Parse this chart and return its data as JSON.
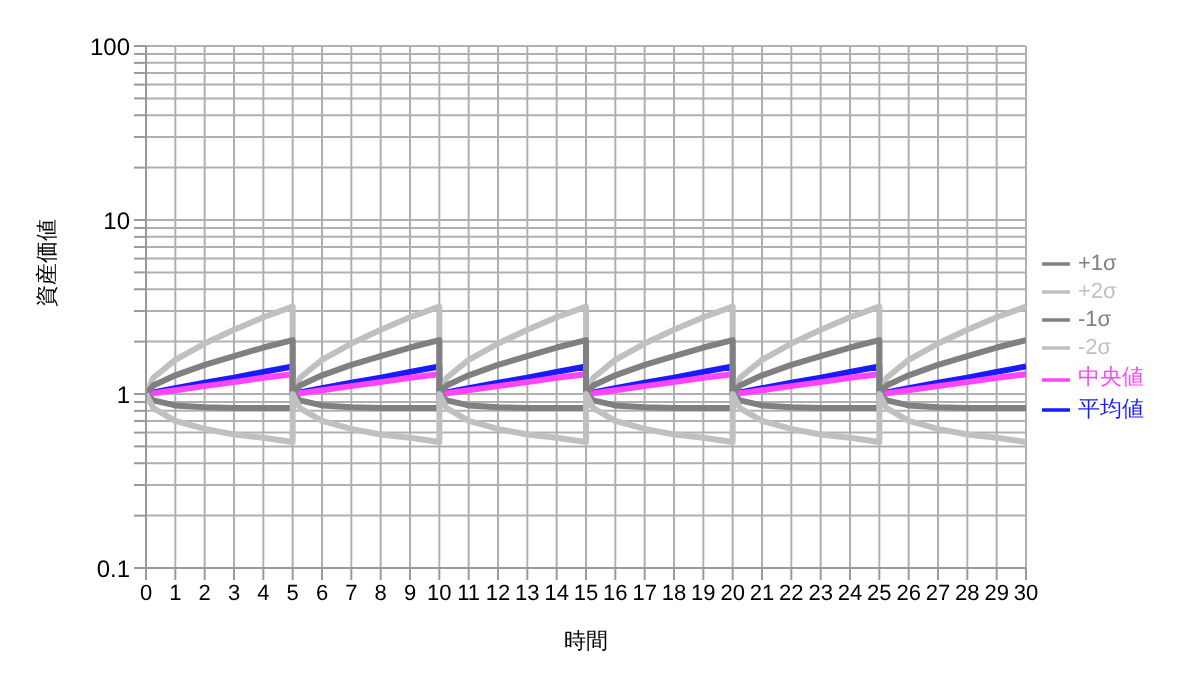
{
  "chart_data": {
    "type": "line",
    "xlabel": "時間",
    "ylabel": "資産価値",
    "log": "y",
    "grid": true,
    "legend": "right",
    "marker": "none",
    "line_style": "solid",
    "x": [
      0,
      0.25,
      1,
      2,
      3,
      4,
      5,
      5,
      5.25,
      6,
      7,
      8,
      9,
      10,
      10,
      10.25,
      11,
      12,
      13,
      14,
      15,
      15,
      15.25,
      16,
      17,
      18,
      19,
      20,
      20,
      20.25,
      21,
      22,
      23,
      24,
      25,
      25,
      25.25,
      26,
      27,
      28,
      29,
      30
    ],
    "xlim": [
      0,
      30
    ],
    "xticks": [
      0,
      1,
      2,
      3,
      4,
      5,
      6,
      7,
      8,
      9,
      10,
      11,
      12,
      13,
      14,
      15,
      16,
      17,
      18,
      19,
      20,
      21,
      22,
      23,
      24,
      25,
      26,
      27,
      28,
      29,
      30
    ],
    "ylim": [
      0.1,
      100
    ],
    "yticks": [
      0.1,
      {
        "value": 0.2,
        "label": null
      },
      {
        "value": 0.3,
        "label": null
      },
      {
        "value": 0.4,
        "label": null
      },
      {
        "value": 0.5,
        "label": null
      },
      {
        "value": 0.6,
        "label": null
      },
      {
        "value": 0.7,
        "label": null
      },
      {
        "value": 0.8,
        "label": null
      },
      {
        "value": 0.9,
        "label": null
      },
      1,
      {
        "value": 2,
        "label": null
      },
      {
        "value": 3,
        "label": null
      },
      {
        "value": 4,
        "label": null
      },
      {
        "value": 5,
        "label": null
      },
      {
        "value": 6,
        "label": null
      },
      {
        "value": 7,
        "label": null
      },
      {
        "value": 8,
        "label": null
      },
      {
        "value": 9,
        "label": null
      },
      10,
      {
        "value": 20,
        "label": null
      },
      {
        "value": 30,
        "label": null
      },
      {
        "value": 40,
        "label": null
      },
      {
        "value": 50,
        "label": null
      },
      {
        "value": 60,
        "label": null
      },
      {
        "value": 70,
        "label": null
      },
      {
        "value": 80,
        "label": null
      },
      {
        "value": 90,
        "label": null
      },
      100
    ],
    "series": [
      {
        "name": "平均値",
        "color": "#1a1aff",
        "values": [
          1,
          1.02,
          1.08,
          1.16,
          1.24,
          1.34,
          1.44,
          1,
          1.02,
          1.08,
          1.16,
          1.24,
          1.34,
          1.44,
          1,
          1.02,
          1.08,
          1.16,
          1.24,
          1.34,
          1.44,
          1,
          1.02,
          1.08,
          1.16,
          1.24,
          1.34,
          1.44,
          1,
          1.02,
          1.08,
          1.16,
          1.24,
          1.34,
          1.44,
          1,
          1.02,
          1.08,
          1.16,
          1.24,
          1.34,
          1.44
        ]
      },
      {
        "name": "中央値",
        "color": "#ff44ff",
        "values": [
          1,
          1.01,
          1.05,
          1.11,
          1.17,
          1.24,
          1.3,
          1,
          1.01,
          1.05,
          1.11,
          1.17,
          1.24,
          1.3,
          1,
          1.01,
          1.05,
          1.11,
          1.17,
          1.24,
          1.3,
          1,
          1.01,
          1.05,
          1.11,
          1.17,
          1.24,
          1.3,
          1,
          1.01,
          1.05,
          1.11,
          1.17,
          1.24,
          1.3,
          1,
          1.01,
          1.05,
          1.11,
          1.17,
          1.24,
          1.3
        ]
      },
      {
        "name": "+2σ",
        "color": "#c0c0c0",
        "values": [
          1,
          1.24,
          1.57,
          1.95,
          2.34,
          2.76,
          3.18,
          1,
          1.24,
          1.57,
          1.95,
          2.34,
          2.76,
          3.18,
          1,
          1.24,
          1.57,
          1.95,
          2.34,
          2.76,
          3.18,
          1,
          1.24,
          1.57,
          1.95,
          2.34,
          2.76,
          3.18,
          1,
          1.24,
          1.57,
          1.95,
          2.34,
          2.76,
          3.18,
          1,
          1.24,
          1.57,
          1.95,
          2.34,
          2.76,
          3.18
        ]
      },
      {
        "name": "+1σ",
        "color": "#808080",
        "values": [
          1,
          1.12,
          1.28,
          1.47,
          1.65,
          1.85,
          2.04,
          1,
          1.12,
          1.28,
          1.47,
          1.65,
          1.85,
          2.04,
          1,
          1.12,
          1.28,
          1.47,
          1.65,
          1.85,
          2.04,
          1,
          1.12,
          1.28,
          1.47,
          1.65,
          1.85,
          2.04,
          1,
          1.12,
          1.28,
          1.47,
          1.65,
          1.85,
          2.04,
          1,
          1.12,
          1.28,
          1.47,
          1.65,
          1.85,
          2.04
        ]
      },
      {
        "name": "-1σ",
        "color": "#808080",
        "values": [
          1,
          0.92,
          0.86,
          0.84,
          0.83,
          0.83,
          0.83,
          1,
          0.92,
          0.86,
          0.84,
          0.83,
          0.83,
          0.83,
          1,
          0.92,
          0.86,
          0.84,
          0.83,
          0.83,
          0.83,
          1,
          0.92,
          0.86,
          0.84,
          0.83,
          0.83,
          0.83,
          1,
          0.92,
          0.86,
          0.84,
          0.83,
          0.83,
          0.83,
          1,
          0.92,
          0.86,
          0.84,
          0.83,
          0.83,
          0.83
        ]
      },
      {
        "name": "-2σ",
        "color": "#c0c0c0",
        "values": [
          1,
          0.83,
          0.7,
          0.63,
          0.585,
          0.56,
          0.53,
          1,
          0.83,
          0.7,
          0.63,
          0.585,
          0.56,
          0.53,
          1,
          0.83,
          0.7,
          0.63,
          0.585,
          0.56,
          0.53,
          1,
          0.83,
          0.7,
          0.63,
          0.585,
          0.56,
          0.53,
          1,
          0.83,
          0.7,
          0.63,
          0.585,
          0.56,
          0.53,
          1,
          0.83,
          0.7,
          0.63,
          0.585,
          0.56,
          0.53
        ]
      }
    ]
  }
}
